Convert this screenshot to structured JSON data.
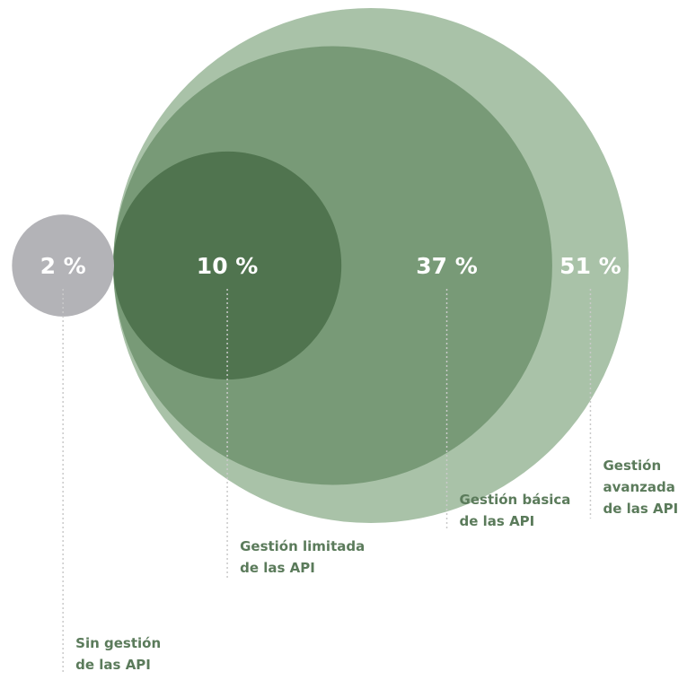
{
  "chart_data": {
    "type": "nested-bubble",
    "categories": [
      "Sin gestión\nde las API",
      "Gestión limitada\nde las API",
      "Gestión básica\nde las API",
      "Gestión\navanzada\nde las API"
    ],
    "values": [
      2,
      10,
      37,
      51
    ],
    "value_labels": [
      "2 %",
      "10 %",
      "37 %",
      "51 %"
    ],
    "colors": [
      "#b3b3b7",
      "#50744f",
      "#789a77",
      "#a9c2a8"
    ]
  }
}
